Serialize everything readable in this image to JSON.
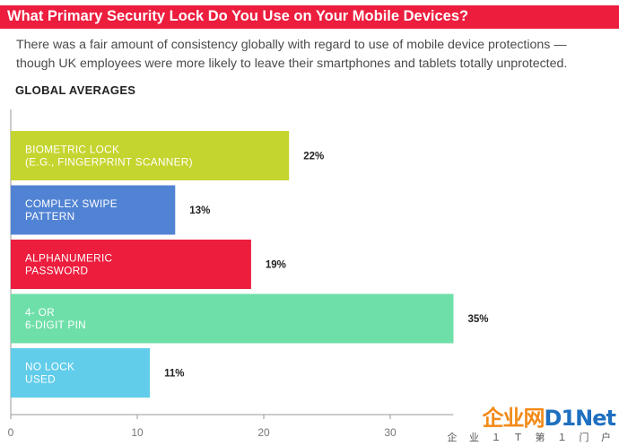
{
  "header": {
    "title": "What Primary Security Lock Do You Use on Your Mobile Devices?",
    "subtitle_line1": "There was a fair amount of consistency globally with regard to use of mobile device protections —",
    "subtitle_line2": "though UK employees were more likely to leave their smartphones and tablets totally unprotected.",
    "section_label": "GLOBAL AVERAGES"
  },
  "chart_data": {
    "type": "bar",
    "orientation": "horizontal",
    "title": "",
    "xlabel": "",
    "ylabel": "",
    "xlim": [
      0,
      35
    ],
    "x_ticks": [
      0,
      10,
      20,
      30
    ],
    "categories": [
      [
        "BIOMETRIC LOCK",
        "(E.G., FINGERPRINT SCANNER)"
      ],
      [
        "COMPLEX SWIPE",
        "PATTERN"
      ],
      [
        "ALPHANUMERIC",
        "PASSWORD"
      ],
      [
        "4- OR",
        "6-DIGIT PIN"
      ],
      [
        "NO LOCK",
        "USED"
      ]
    ],
    "values": [
      22,
      13,
      19,
      35,
      11
    ],
    "value_labels": [
      "22%",
      "13%",
      "19%",
      "35%",
      "11%"
    ],
    "colors": [
      "#c5d52f",
      "#5183d4",
      "#ec1d3d",
      "#6fdfa9",
      "#62cdea"
    ],
    "grid": false,
    "legend": "none"
  },
  "watermark": {
    "main_a": "企业网",
    "main_b": "D1Net",
    "sub": "企 业 １ Ｔ 第 １ 门 户"
  },
  "colors": {
    "title_bar": "#ec1d3d",
    "axis": "#999999"
  }
}
